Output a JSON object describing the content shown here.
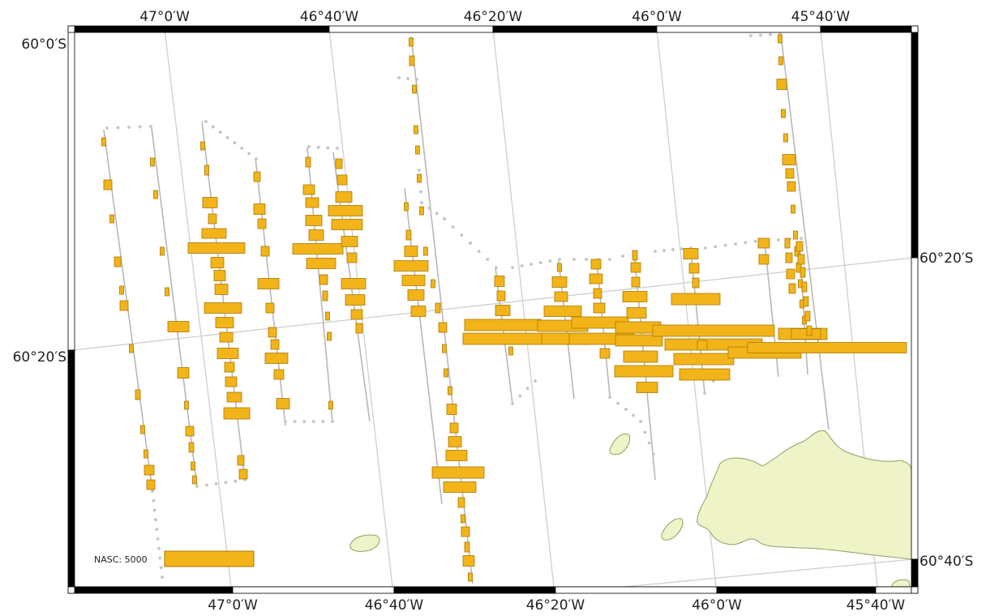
{
  "map": {
    "top_axis_labels": [
      "47°0′W",
      "46°40′W",
      "46°20′W",
      "46°0′W",
      "45°40′W"
    ],
    "bottom_axis_labels": [
      "47°0′W",
      "46°40′W",
      "46°20′W",
      "46°0′W",
      "45°40′W"
    ],
    "left_axis_labels": [
      "60°0′S",
      "60°20′S"
    ],
    "right_axis_labels": [
      "60°20′S",
      "60°40′S"
    ],
    "legend": {
      "label": "NASC: 5000",
      "value": 5000
    },
    "colors": {
      "bar_fill": "#f2b418",
      "bar_stroke": "#a87a08",
      "land_fill": "#eef3c8",
      "land_stroke": "#8fa060",
      "graticule": "#cfcfcf",
      "track_dot": "#c4c4c4",
      "frame_dark": "#000000",
      "frame_light": "#ffffff"
    }
  }
}
